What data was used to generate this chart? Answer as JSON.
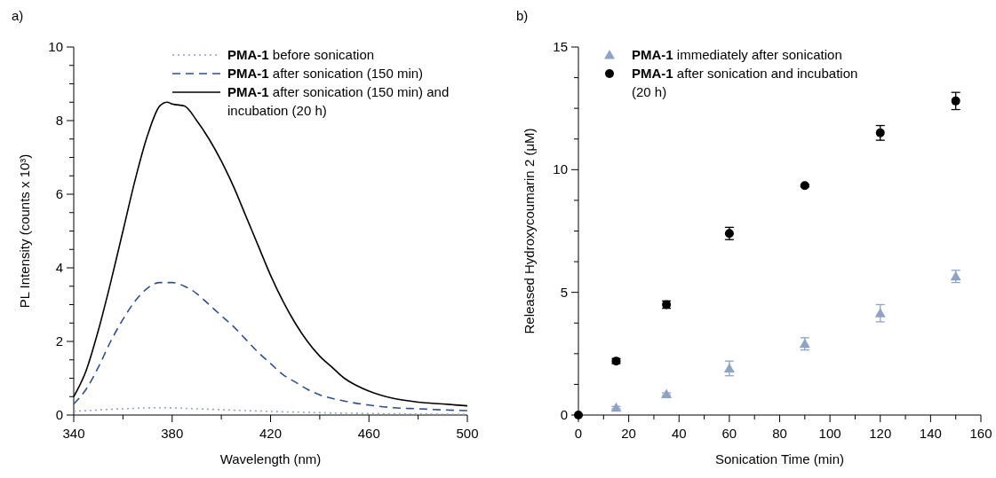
{
  "chart_data": [
    {
      "type": "line",
      "title": "a)",
      "xlabel": "Wavelength (nm)",
      "ylabel": "PL Intensity (counts x 10³)",
      "xlim": [
        340,
        500
      ],
      "ylim": [
        0,
        10
      ],
      "xticks": [
        340,
        {
          "value": 360,
          "label": null
        },
        380,
        {
          "value": 400,
          "label": null
        },
        420,
        {
          "value": 440,
          "label": null
        },
        460,
        {
          "value": 480,
          "label": null
        },
        500
      ],
      "yticks": [
        0,
        {
          "value": 0.5,
          "label": null
        },
        {
          "value": 1,
          "label": null
        },
        {
          "value": 1.5,
          "label": null
        },
        2,
        {
          "value": 2.5,
          "label": null
        },
        {
          "value": 3,
          "label": null
        },
        {
          "value": 3.5,
          "label": null
        },
        4,
        {
          "value": 4.5,
          "label": null
        },
        {
          "value": 5,
          "label": null
        },
        {
          "value": 5.5,
          "label": null
        },
        6,
        {
          "value": 6.5,
          "label": null
        },
        {
          "value": 7,
          "label": null
        },
        {
          "value": 7.5,
          "label": null
        },
        8,
        {
          "value": 8.5,
          "label": null
        },
        {
          "value": 9,
          "label": null
        },
        {
          "value": 9.5,
          "label": null
        },
        10
      ],
      "legend": "top right",
      "marker": "none",
      "series": [
        {
          "name": "PMA-1 before sonication",
          "color": "#8fa3c4",
          "line_style": "dotted",
          "x": [
            340,
            360,
            375,
            390,
            410,
            430,
            450,
            480,
            500
          ],
          "values": [
            0.1,
            0.17,
            0.2,
            0.17,
            0.12,
            0.08,
            0.05,
            0.03,
            0.02
          ]
        },
        {
          "name": "PMA-1 after sonication (150 min)",
          "color": "#2f4f8f",
          "line_style": "dashed",
          "x": [
            340,
            345,
            350,
            355,
            360,
            365,
            370,
            375,
            380,
            385,
            390,
            395,
            400,
            405,
            410,
            415,
            420,
            425,
            430,
            435,
            440,
            450,
            460,
            470,
            480,
            490,
            500
          ],
          "values": [
            0.3,
            0.7,
            1.3,
            2.0,
            2.6,
            3.1,
            3.45,
            3.6,
            3.6,
            3.5,
            3.3,
            3.0,
            2.7,
            2.4,
            2.05,
            1.7,
            1.4,
            1.1,
            0.9,
            0.7,
            0.55,
            0.38,
            0.27,
            0.2,
            0.17,
            0.14,
            0.12
          ]
        },
        {
          "name": "PMA-1 after sonication (150 min) and incubation (20 h)",
          "color": "#000000",
          "line_style": "solid",
          "x": [
            340,
            345,
            350,
            355,
            360,
            365,
            370,
            375,
            378,
            380,
            385,
            390,
            395,
            400,
            405,
            410,
            415,
            420,
            425,
            430,
            435,
            440,
            445,
            450,
            455,
            460,
            470,
            480,
            490,
            500
          ],
          "values": [
            0.5,
            1.2,
            2.3,
            3.6,
            5.0,
            6.4,
            7.6,
            8.4,
            8.5,
            8.45,
            8.4,
            8.0,
            7.5,
            6.9,
            6.2,
            5.4,
            4.6,
            3.8,
            3.1,
            2.5,
            2.0,
            1.6,
            1.3,
            1.0,
            0.8,
            0.65,
            0.45,
            0.35,
            0.3,
            0.25
          ]
        }
      ]
    },
    {
      "type": "scatter",
      "title": "b)",
      "xlabel": "Sonication Time (min)",
      "ylabel": "Released Hydroxycoumarin 2 (μM)",
      "xlim": [
        0,
        160
      ],
      "ylim": [
        0,
        15
      ],
      "xticks": [
        0,
        {
          "value": 10,
          "label": null
        },
        20,
        {
          "value": 30,
          "label": null
        },
        40,
        {
          "value": 50,
          "label": null
        },
        60,
        {
          "value": 70,
          "label": null
        },
        80,
        {
          "value": 90,
          "label": null
        },
        100,
        {
          "value": 110,
          "label": null
        },
        120,
        {
          "value": 130,
          "label": null
        },
        140,
        {
          "value": 150,
          "label": null
        },
        160
      ],
      "yticks": [
        0,
        {
          "value": 1.25,
          "label": null
        },
        {
          "value": 2.5,
          "label": null
        },
        {
          "value": 3.75,
          "label": null
        },
        5,
        {
          "value": 6.25,
          "label": null
        },
        {
          "value": 7.5,
          "label": null
        },
        {
          "value": 8.75,
          "label": null
        },
        10,
        {
          "value": 11.25,
          "label": null
        },
        {
          "value": 12.5,
          "label": null
        },
        {
          "value": 13.75,
          "label": null
        },
        15
      ],
      "legend": "top",
      "line_style": "none",
      "series": [
        {
          "name": "PMA-1 immediately after sonication",
          "color": "#8fa3c4",
          "marker": "triangle",
          "x": [
            15,
            35,
            60,
            90,
            120,
            150
          ],
          "values": [
            0.3,
            0.85,
            1.9,
            2.9,
            4.15,
            5.65
          ],
          "errors": [
            0.05,
            0.05,
            0.3,
            0.25,
            0.35,
            0.25
          ]
        },
        {
          "name": "PMA-1 after sonication and incubation (20 h)",
          "color": "#000000",
          "marker": "circle",
          "x": [
            0,
            15,
            35,
            60,
            90,
            120,
            150
          ],
          "values": [
            0,
            2.2,
            4.5,
            7.4,
            9.35,
            11.5,
            12.8
          ],
          "errors": [
            null,
            0.1,
            0.15,
            0.25,
            0.05,
            0.3,
            0.35
          ]
        }
      ]
    }
  ]
}
